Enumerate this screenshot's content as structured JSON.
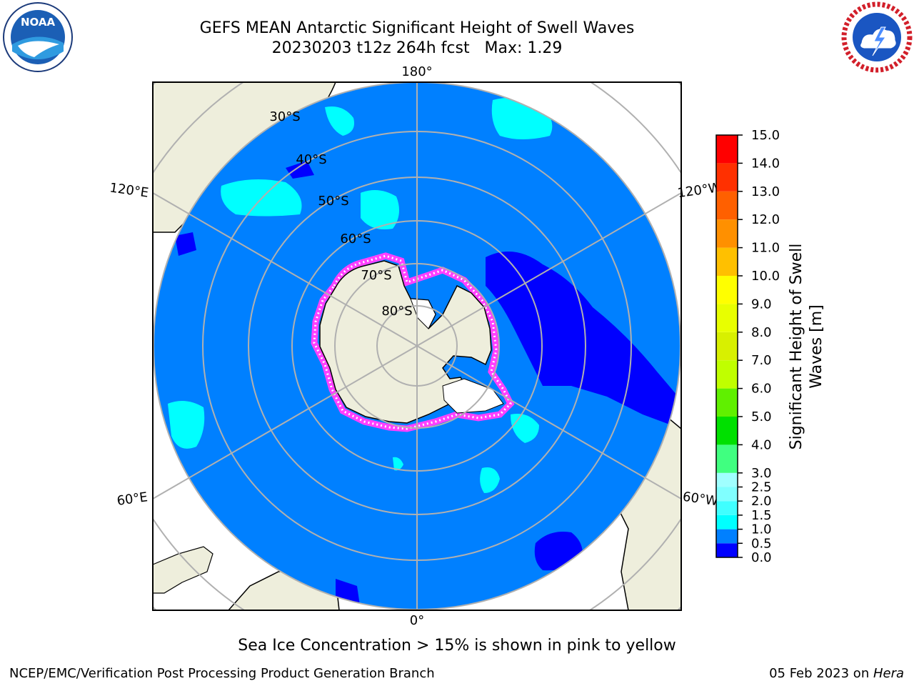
{
  "title": {
    "line1": "GEFS MEAN Antarctic Significant Height of Swell Waves",
    "line2": "20230203 t12z 264h fcst   Max: 1.29"
  },
  "map": {
    "projection": "south-polar-stereographic",
    "longitude_labels": [
      "180°",
      "120°E",
      "120°W",
      "60°E",
      "60°W",
      "0°"
    ],
    "latitude_labels": [
      "30°S",
      "40°S",
      "50°S",
      "60°S",
      "70°S",
      "80°S"
    ],
    "colors": {
      "ocean": "#0080ff",
      "land": "#eeeedc",
      "low_swell": "#0000ff",
      "mid_swell": "#00ffff",
      "sea_ice_edge": "#ff40ff",
      "sea_ice_core": "#ffffff",
      "gridline": "#b0b0b0"
    }
  },
  "colorbar": {
    "label": "Significant Height of Swell Waves [m]",
    "ticks": [
      "0.0",
      "0.5",
      "1.0",
      "1.5",
      "2.0",
      "2.5",
      "3.0",
      "3.5",
      "4.0",
      "4.5",
      "5.0",
      "5.5",
      "6.0",
      "6.5",
      "7.0",
      "7.5",
      "8.0",
      "8.5",
      "9.0",
      "9.5",
      "10.0",
      "10.5",
      "11.0",
      "11.5",
      "12.0",
      "12.5",
      "13.0",
      "13.5",
      "14.0",
      "14.5",
      "15.0"
    ],
    "labels_shown": [
      "0.0",
      "0.5",
      "1.0",
      "1.5",
      "2.0",
      "2.5",
      "3.0",
      "3.5",
      "4.0",
      "4.5",
      "5.0",
      "5.5",
      "6.0",
      "6.5",
      "7.0",
      "7.5",
      "8.0",
      "8.5",
      "9.0",
      "9.5",
      "10.0",
      "10.5",
      "11.0",
      "11.5",
      "12.0",
      "12.5",
      "13.0",
      "13.5",
      "14.0",
      "14.5",
      "15.0"
    ],
    "printed_labels": [
      "0.0",
      "0.5",
      "1.0",
      "1.5",
      "2.0",
      "2.5",
      "3.0",
      "4.0",
      "5.0",
      "6.0",
      "7.0",
      "8.0",
      "9.0",
      "10.0",
      "11.0",
      "12.0",
      "13.0",
      "14.0",
      "15.0"
    ],
    "bands": [
      {
        "from": 0.0,
        "to": 0.5,
        "color": "#0000ff"
      },
      {
        "from": 0.5,
        "to": 1.0,
        "color": "#0080ff"
      },
      {
        "from": 1.0,
        "to": 1.5,
        "color": "#00ffff"
      },
      {
        "from": 1.5,
        "to": 2.0,
        "color": "#40ffff"
      },
      {
        "from": 2.0,
        "to": 2.5,
        "color": "#80ffff"
      },
      {
        "from": 2.5,
        "to": 3.0,
        "color": "#a0ffff"
      },
      {
        "from": 3.0,
        "to": 4.0,
        "color": "#40ff80"
      },
      {
        "from": 4.0,
        "to": 5.0,
        "color": "#00e000"
      },
      {
        "from": 5.0,
        "to": 6.0,
        "color": "#60f000"
      },
      {
        "from": 6.0,
        "to": 7.0,
        "color": "#c0ff00"
      },
      {
        "from": 7.0,
        "to": 8.0,
        "color": "#d8f000"
      },
      {
        "from": 8.0,
        "to": 9.0,
        "color": "#e8ff00"
      },
      {
        "from": 9.0,
        "to": 10.0,
        "color": "#ffff00"
      },
      {
        "from": 10.0,
        "to": 11.0,
        "color": "#ffc000"
      },
      {
        "from": 11.0,
        "to": 12.0,
        "color": "#ff9000"
      },
      {
        "from": 12.0,
        "to": 13.0,
        "color": "#ff6000"
      },
      {
        "from": 13.0,
        "to": 14.0,
        "color": "#ff3000"
      },
      {
        "from": 14.0,
        "to": 15.0,
        "color": "#ff0000"
      }
    ],
    "vmin": 0.0,
    "vmax": 15.0
  },
  "caption": "Sea Ice Concentration > 15% is shown in pink to yellow",
  "footer": {
    "left": "NCEP/EMC/Verification Post Processing Product Generation Branch",
    "right_prefix": "05 Feb 2023 on ",
    "right_machine": "Hera"
  },
  "logos": {
    "left": "noaa-logo",
    "left_text": "NOAA",
    "right": "nws-logo"
  }
}
